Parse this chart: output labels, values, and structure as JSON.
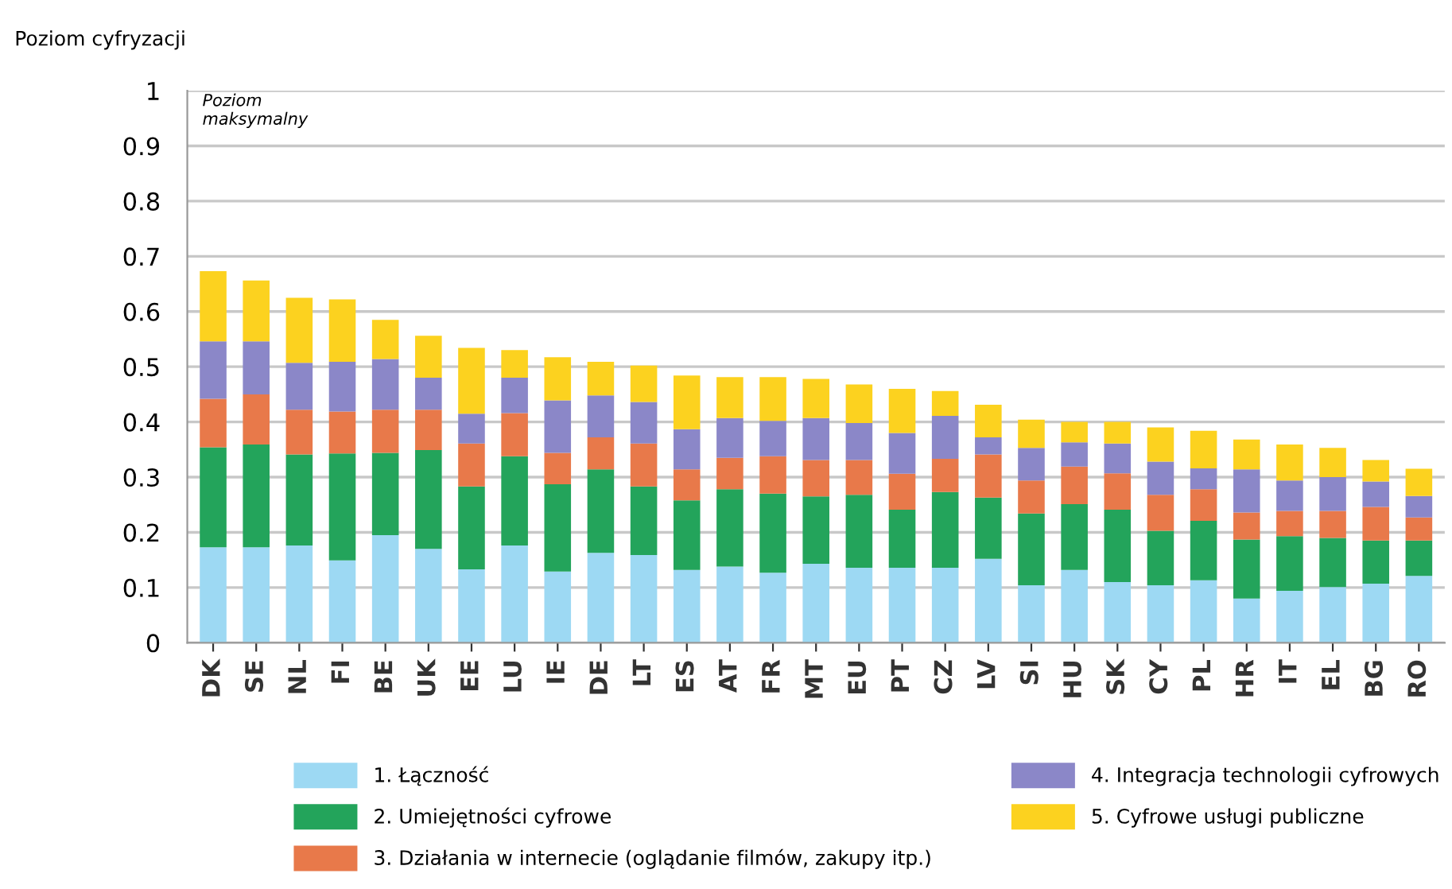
{
  "chart_data": {
    "type": "bar",
    "stacked": true,
    "ylabel": "Poziom cyfryzacji",
    "annotations": [
      "Poziom\nmaksymalny"
    ],
    "categories": [
      "DK",
      "SE",
      "NL",
      "FI",
      "BE",
      "UK",
      "EE",
      "LU",
      "IE",
      "DE",
      "LT",
      "ES",
      "AT",
      "FR",
      "MT",
      "EU",
      "PT",
      "CZ",
      "LV",
      "SI",
      "HU",
      "SK",
      "CY",
      "PL",
      "HR",
      "IT",
      "EL",
      "BG",
      "RO"
    ],
    "series": [
      {
        "name": "1. Łączność",
        "color": "#9dd9f3",
        "values": [
          0.173,
          0.173,
          0.176,
          0.149,
          0.195,
          0.17,
          0.133,
          0.176,
          0.129,
          0.163,
          0.159,
          0.132,
          0.138,
          0.127,
          0.143,
          0.136,
          0.136,
          0.136,
          0.152,
          0.104,
          0.132,
          0.11,
          0.104,
          0.113,
          0.08,
          0.094,
          0.101,
          0.107,
          0.121
        ]
      },
      {
        "name": "2. Umiejętności cyfrowe",
        "color": "#23a45b",
        "values": [
          0.181,
          0.186,
          0.165,
          0.194,
          0.149,
          0.179,
          0.15,
          0.162,
          0.158,
          0.151,
          0.124,
          0.126,
          0.14,
          0.143,
          0.122,
          0.132,
          0.105,
          0.137,
          0.111,
          0.13,
          0.119,
          0.131,
          0.099,
          0.108,
          0.107,
          0.099,
          0.089,
          0.078,
          0.064
        ]
      },
      {
        "name": "3. Działania w internecie (oglądanie filmów, zakupy itp.)",
        "color": "#e8794a",
        "values": [
          0.088,
          0.091,
          0.081,
          0.076,
          0.078,
          0.073,
          0.078,
          0.078,
          0.057,
          0.058,
          0.078,
          0.056,
          0.057,
          0.068,
          0.066,
          0.063,
          0.065,
          0.06,
          0.078,
          0.06,
          0.068,
          0.066,
          0.065,
          0.057,
          0.049,
          0.046,
          0.049,
          0.061,
          0.042
        ]
      },
      {
        "name": "4. Integracja technologii cyfrowych",
        "color": "#8b87c8",
        "values": [
          0.104,
          0.096,
          0.085,
          0.09,
          0.092,
          0.058,
          0.054,
          0.064,
          0.095,
          0.076,
          0.075,
          0.073,
          0.072,
          0.064,
          0.076,
          0.067,
          0.074,
          0.078,
          0.031,
          0.059,
          0.044,
          0.054,
          0.06,
          0.038,
          0.078,
          0.055,
          0.061,
          0.046,
          0.039
        ]
      },
      {
        "name": "5. Cyfrowe usługi publiczne",
        "color": "#fcd21f",
        "values": [
          0.127,
          0.11,
          0.118,
          0.113,
          0.071,
          0.076,
          0.119,
          0.05,
          0.078,
          0.061,
          0.066,
          0.097,
          0.074,
          0.079,
          0.071,
          0.07,
          0.08,
          0.045,
          0.059,
          0.051,
          0.037,
          0.039,
          0.062,
          0.068,
          0.054,
          0.065,
          0.053,
          0.039,
          0.049
        ]
      }
    ],
    "ylim": [
      0,
      1
    ],
    "yticks": [
      0,
      0.1,
      0.2,
      0.3,
      0.4,
      0.5,
      0.6,
      0.7,
      0.8,
      0.9,
      1
    ],
    "grid": "y",
    "legend": "bottom"
  }
}
